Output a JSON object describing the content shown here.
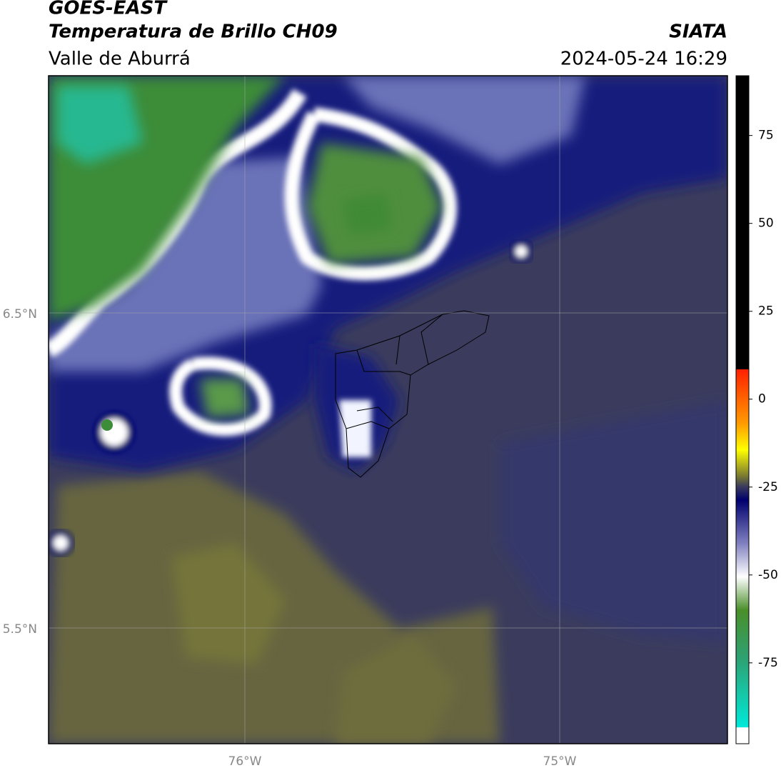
{
  "header": {
    "title": "GOES-EAST",
    "subtitle": "Temperatura de Brillo CH09",
    "region": "Valle de Aburrá",
    "source": "SIATA",
    "timestamp": "2024-05-24 16:29"
  },
  "map": {
    "lat_labels": [
      "6.5°N",
      "5.5°N"
    ],
    "lon_labels": [
      "76°W",
      "75°W"
    ]
  },
  "colorbar": {
    "limits": [
      -98,
      92
    ],
    "ticks": [
      75,
      50,
      25,
      0,
      -25,
      -50,
      -75
    ]
  }
}
